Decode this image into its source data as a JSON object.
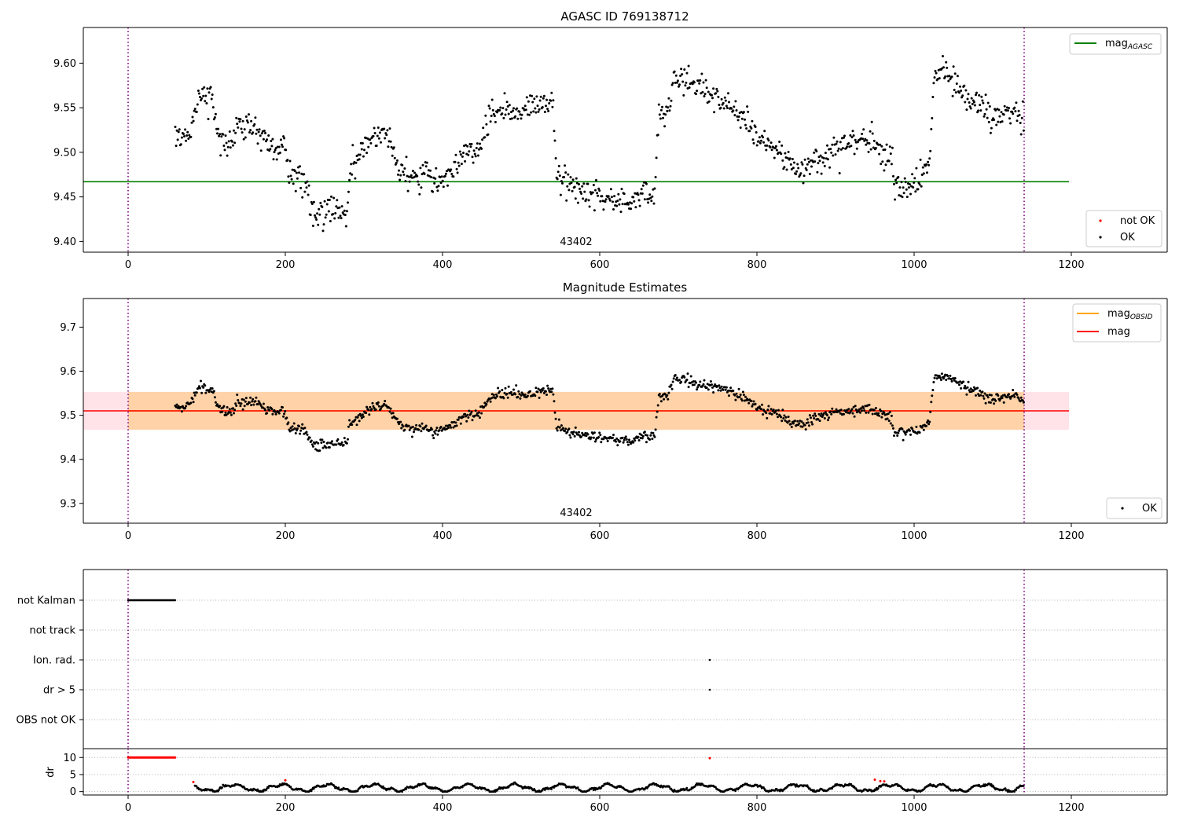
{
  "chart_data": [
    {
      "type": "scatter",
      "title": "AGASC ID 769138712",
      "xlim": [
        -57,
        1322
      ],
      "ylim": [
        9.388,
        9.64
      ],
      "xticks": [
        0,
        200,
        400,
        600,
        800,
        1000,
        1200
      ],
      "xtick_labels": [
        "0",
        "200",
        "400",
        "600",
        "800",
        "1000",
        "1200"
      ],
      "yticks": [
        9.4,
        9.45,
        9.5,
        9.55,
        9.6
      ],
      "ytick_labels": [
        "9.40",
        "9.45",
        "9.50",
        "9.55",
        "9.60"
      ],
      "annotation": "43402",
      "annotation_x": 570,
      "obs_boundaries": [
        0,
        1140
      ],
      "mag_agasc": 9.467,
      "mag_agasc_xrange": [
        -57,
        1197
      ],
      "point_x_range": [
        60,
        1140
      ],
      "legend_upper": {
        "placement": "upper-right",
        "entries": [
          {
            "label": "mag",
            "sub": "AGASC",
            "color": "#008000"
          }
        ]
      },
      "legend_lower": {
        "placement": "lower-right",
        "entries": [
          {
            "label": "not OK",
            "color": "#ff0000"
          },
          {
            "label": "OK",
            "color": "#000000"
          }
        ]
      },
      "anchors": [
        [
          60,
          9.52
        ],
        [
          70,
          9.515
        ],
        [
          80,
          9.53
        ],
        [
          90,
          9.565
        ],
        [
          100,
          9.56
        ],
        [
          108,
          9.555
        ],
        [
          115,
          9.52
        ],
        [
          130,
          9.505
        ],
        [
          140,
          9.53
        ],
        [
          160,
          9.53
        ],
        [
          180,
          9.51
        ],
        [
          190,
          9.505
        ],
        [
          198,
          9.515
        ],
        [
          205,
          9.47
        ],
        [
          215,
          9.47
        ],
        [
          225,
          9.465
        ],
        [
          235,
          9.43
        ],
        [
          245,
          9.43
        ],
        [
          255,
          9.435
        ],
        [
          268,
          9.435
        ],
        [
          278,
          9.435
        ],
        [
          282,
          9.48
        ],
        [
          290,
          9.49
        ],
        [
          300,
          9.505
        ],
        [
          315,
          9.52
        ],
        [
          330,
          9.52
        ],
        [
          345,
          9.48
        ],
        [
          360,
          9.47
        ],
        [
          375,
          9.475
        ],
        [
          390,
          9.462
        ],
        [
          400,
          9.47
        ],
        [
          410,
          9.478
        ],
        [
          420,
          9.49
        ],
        [
          430,
          9.5
        ],
        [
          445,
          9.5
        ],
        [
          460,
          9.54
        ],
        [
          480,
          9.55
        ],
        [
          500,
          9.545
        ],
        [
          520,
          9.555
        ],
        [
          540,
          9.555
        ],
        [
          545,
          9.475
        ],
        [
          555,
          9.47
        ],
        [
          565,
          9.46
        ],
        [
          580,
          9.455
        ],
        [
          600,
          9.45
        ],
        [
          620,
          9.445
        ],
        [
          640,
          9.44
        ],
        [
          655,
          9.455
        ],
        [
          670,
          9.455
        ],
        [
          675,
          9.54
        ],
        [
          685,
          9.54
        ],
        [
          695,
          9.585
        ],
        [
          710,
          9.58
        ],
        [
          730,
          9.57
        ],
        [
          745,
          9.565
        ],
        [
          760,
          9.56
        ],
        [
          775,
          9.545
        ],
        [
          790,
          9.535
        ],
        [
          800,
          9.515
        ],
        [
          815,
          9.51
        ],
        [
          830,
          9.5
        ],
        [
          845,
          9.48
        ],
        [
          860,
          9.478
        ],
        [
          870,
          9.49
        ],
        [
          885,
          9.5
        ],
        [
          900,
          9.505
        ],
        [
          915,
          9.51
        ],
        [
          930,
          9.512
        ],
        [
          945,
          9.515
        ],
        [
          955,
          9.505
        ],
        [
          970,
          9.495
        ],
        [
          975,
          9.46
        ],
        [
          990,
          9.462
        ],
        [
          1005,
          9.465
        ],
        [
          1020,
          9.49
        ],
        [
          1025,
          9.585
        ],
        [
          1040,
          9.59
        ],
        [
          1055,
          9.575
        ],
        [
          1070,
          9.558
        ],
        [
          1085,
          9.55
        ],
        [
          1100,
          9.535
        ],
        [
          1115,
          9.545
        ],
        [
          1130,
          9.545
        ],
        [
          1140,
          9.53
        ]
      ],
      "noise": 0.008,
      "series": [
        {
          "name": "OK",
          "color": "#000000"
        },
        {
          "name": "not OK",
          "color": "#ff0000"
        }
      ]
    },
    {
      "type": "scatter",
      "title": "Magnitude Estimates",
      "xlim": [
        -57,
        1322
      ],
      "ylim": [
        9.255,
        9.765
      ],
      "xticks": [
        0,
        200,
        400,
        600,
        800,
        1000,
        1200
      ],
      "xtick_labels": [
        "0",
        "200",
        "400",
        "600",
        "800",
        "1000",
        "1200"
      ],
      "yticks": [
        9.3,
        9.4,
        9.5,
        9.6,
        9.7
      ],
      "ytick_labels": [
        "9.3",
        "9.4",
        "9.5",
        "9.6",
        "9.7"
      ],
      "annotation": "43402",
      "annotation_x": 570,
      "obs_boundaries": [
        0,
        1140
      ],
      "mag": 9.51,
      "mag_xrange": [
        -57,
        1197
      ],
      "mag_band": [
        9.467,
        9.553
      ],
      "mag_obsid": 9.51,
      "mag_obsid_band": [
        9.467,
        9.553
      ],
      "mag_obsid_xrange": [
        0,
        1140
      ],
      "legend_upper": {
        "placement": "upper-right",
        "entries": [
          {
            "label": "mag",
            "sub": "OBSID",
            "color": "#ffa500"
          },
          {
            "label": "mag",
            "sub": "",
            "color": "#ff0000"
          }
        ]
      },
      "legend_lower": {
        "placement": "lower-right",
        "entries": [
          {
            "label": "OK",
            "color": "#000000"
          }
        ]
      },
      "noise": 0.006
    },
    {
      "type": "scatter",
      "title": "",
      "xlim": [
        -57,
        1322
      ],
      "category_labels": [
        "not Kalman",
        "not track",
        "Ion. rad.",
        "dr > 5",
        "OBS not OK"
      ],
      "flags": {
        "not Kalman": {
          "x_range": [
            0,
            60
          ]
        },
        "Ion. rad.": {
          "x": [
            740
          ]
        },
        "dr > 5": {
          "x": [
            740
          ]
        }
      },
      "obs_boundaries": [
        0,
        1140
      ]
    },
    {
      "type": "scatter",
      "title": "",
      "ylabel": "dr",
      "xlim": [
        -57,
        1322
      ],
      "ylim": [
        -1,
        12.6
      ],
      "xticks": [
        0,
        200,
        400,
        600,
        800,
        1000,
        1200
      ],
      "xtick_labels": [
        "0",
        "200",
        "400",
        "600",
        "800",
        "1000",
        "1200"
      ],
      "yticks": [
        0,
        5,
        10
      ],
      "ytick_labels": [
        "0",
        "5",
        "10"
      ],
      "obs_boundaries": [
        0,
        1140
      ],
      "dr_saturated": {
        "x_range": [
          0,
          60
        ],
        "value": 10
      },
      "dr_red_points": [
        [
          83,
          2.8
        ],
        [
          200,
          3.3
        ],
        [
          740,
          9.8
        ],
        [
          950,
          3.5
        ],
        [
          957,
          3.1
        ],
        [
          962,
          3.0
        ]
      ],
      "dr_x_range": [
        85,
        1140
      ]
    }
  ]
}
